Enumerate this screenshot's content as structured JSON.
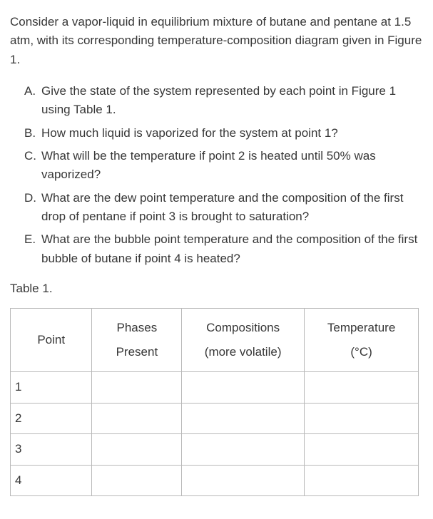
{
  "intro": "Consider a vapor-liquid in equilibrium mixture of butane and pentane at 1.5 atm, with its corresponding temperature-composition diagram given in Figure 1.",
  "questions": [
    {
      "letter": "A.",
      "text": "Give the state of the system represented by each point in Figure 1 using Table 1."
    },
    {
      "letter": "B.",
      "text": "How much liquid is vaporized for the system at point 1?"
    },
    {
      "letter": "C.",
      "text": "What will be the temperature if point 2 is heated until 50% was vaporized?"
    },
    {
      "letter": "D.",
      "text": "What are the dew point temperature and the composition of the first drop of pentane if point 3 is brought to saturation?"
    },
    {
      "letter": "E.",
      "text": "What are the bubble point temperature and the composition of the first bubble of butane if point 4 is heated?"
    }
  ],
  "table_label": "Table 1.",
  "table": {
    "headers": {
      "point": "Point",
      "phases_l1": "Phases",
      "phases_l2": "Present",
      "comp_l1": "Compositions",
      "comp_l2": "(more volatile)",
      "temp_l1": "Temperature",
      "temp_l2": "(°C)"
    },
    "rows": [
      {
        "point": "1",
        "phases": "",
        "comp": "",
        "temp": ""
      },
      {
        "point": "2",
        "phases": "",
        "comp": "",
        "temp": ""
      },
      {
        "point": "3",
        "phases": "",
        "comp": "",
        "temp": ""
      },
      {
        "point": "4",
        "phases": "",
        "comp": "",
        "temp": ""
      }
    ]
  }
}
